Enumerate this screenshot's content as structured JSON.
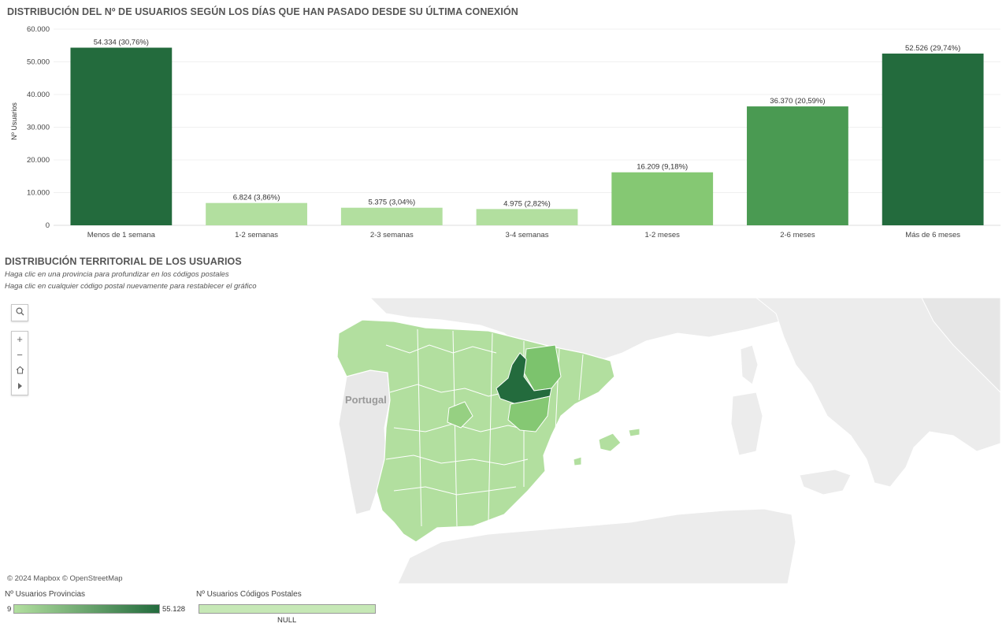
{
  "chart": {
    "title": "DISTRIBUCIÓN DEL Nº DE USUARIOS SEGÚN LOS DÍAS QUE HAN PASADO DESDE SU ÚLTIMA CONEXIÓN"
  },
  "chart_data": {
    "type": "bar",
    "title": "DISTRIBUCIÓN DEL Nº DE USUARIOS SEGÚN LOS DÍAS QUE HAN PASADO DESDE SU ÚLTIMA CONEXIÓN",
    "xlabel": "",
    "ylabel": "Nº Usuarios",
    "categories": [
      "Menos de 1 semana",
      "1-2 semanas",
      "2-3 semanas",
      "3-4 semanas",
      "1-2 meses",
      "2-6 meses",
      "Más de 6 meses"
    ],
    "values": [
      54334,
      6824,
      5375,
      4975,
      16209,
      36370,
      52526
    ],
    "data_labels": [
      "54.334 (30,76%)",
      "6.824 (3,86%)",
      "5.375 (3,04%)",
      "4.975 (2,82%)",
      "16.209 (9,18%)",
      "36.370 (20,59%)",
      "52.526 (29,74%)"
    ],
    "yticks": [
      0,
      10000,
      20000,
      30000,
      40000,
      50000,
      60000
    ],
    "ytick_labels": [
      "0",
      "10.000",
      "20.000",
      "30.000",
      "40.000",
      "50.000",
      "60.000"
    ],
    "ylim": [
      0,
      60000
    ],
    "grid": true,
    "colors": [
      "#236b3d",
      "#b2df9f",
      "#b2df9f",
      "#b2df9f",
      "#85c873",
      "#4a9a52",
      "#236b3d"
    ]
  },
  "map": {
    "title": "DISTRIBUCIÓN TERRITORIAL DE LOS USUARIOS",
    "subtitle1": "Haga clic en una provincia para profundizar en los códigos postales",
    "subtitle2": "Haga clic en cualquier código postal nuevamente para restablecer el gráfico",
    "country_label": "Portugal",
    "attribution": "© 2024 Mapbox © OpenStreetMap",
    "controls": {
      "search_icon": "search-icon",
      "zoom_in": "+",
      "zoom_out": "−",
      "home_icon": "home-icon",
      "play_icon": "play-icon"
    }
  },
  "legend": {
    "provincias_title": "Nº Usuarios Provincias",
    "provincias_min": "9",
    "provincias_max": "55.128",
    "provincias_color_low": "#b2df9f",
    "provincias_color_high": "#236b3d",
    "cp_title": "Nº Usuarios Códigos Postales",
    "cp_null": "NULL",
    "cp_color": "#c6e8b6"
  }
}
